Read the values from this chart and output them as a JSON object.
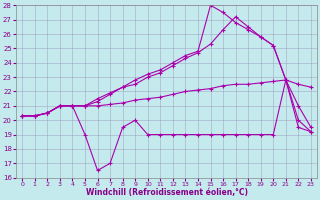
{
  "xlabel": "Windchill (Refroidissement éolien,°C)",
  "background_color": "#c5eaee",
  "grid_color": "#9999bb",
  "line_color": "#aa00aa",
  "x": [
    0,
    1,
    2,
    3,
    4,
    5,
    6,
    7,
    8,
    9,
    10,
    11,
    12,
    13,
    14,
    15,
    16,
    17,
    18,
    19,
    20,
    21,
    22,
    23
  ],
  "line1": [
    20.3,
    20.3,
    20.5,
    21.0,
    21.0,
    21.0,
    21.0,
    21.1,
    21.2,
    21.4,
    21.5,
    21.6,
    21.8,
    22.0,
    22.1,
    22.2,
    22.4,
    22.5,
    22.5,
    22.6,
    22.7,
    22.8,
    22.5,
    22.3
  ],
  "line2": [
    20.3,
    20.3,
    20.5,
    21.0,
    21.0,
    21.0,
    21.5,
    21.9,
    22.3,
    22.5,
    23.0,
    23.3,
    23.8,
    24.3,
    24.7,
    25.3,
    26.3,
    27.2,
    26.5,
    25.8,
    25.2,
    22.8,
    20.0,
    19.2
  ],
  "line3": [
    20.3,
    20.3,
    20.5,
    21.0,
    21.0,
    19.0,
    16.5,
    17.0,
    19.5,
    20.0,
    19.0,
    19.0,
    19.0,
    19.0,
    19.0,
    19.0,
    19.0,
    19.0,
    19.0,
    19.0,
    19.0,
    22.8,
    19.5,
    19.2
  ],
  "line4": [
    20.3,
    20.3,
    20.5,
    21.0,
    21.0,
    21.0,
    21.3,
    21.8,
    22.3,
    22.8,
    23.2,
    23.5,
    24.0,
    24.5,
    24.8,
    28.0,
    27.5,
    26.8,
    26.3,
    25.8,
    25.2,
    22.8,
    21.0,
    19.5
  ],
  "ylim": [
    16,
    28
  ],
  "yticks": [
    16,
    17,
    18,
    19,
    20,
    21,
    22,
    23,
    24,
    25,
    26,
    27,
    28
  ],
  "xticks": [
    0,
    1,
    2,
    3,
    4,
    5,
    6,
    7,
    8,
    9,
    10,
    11,
    12,
    13,
    14,
    15,
    16,
    17,
    18,
    19,
    20,
    21,
    22,
    23
  ],
  "markersize": 3,
  "linewidth": 0.8
}
